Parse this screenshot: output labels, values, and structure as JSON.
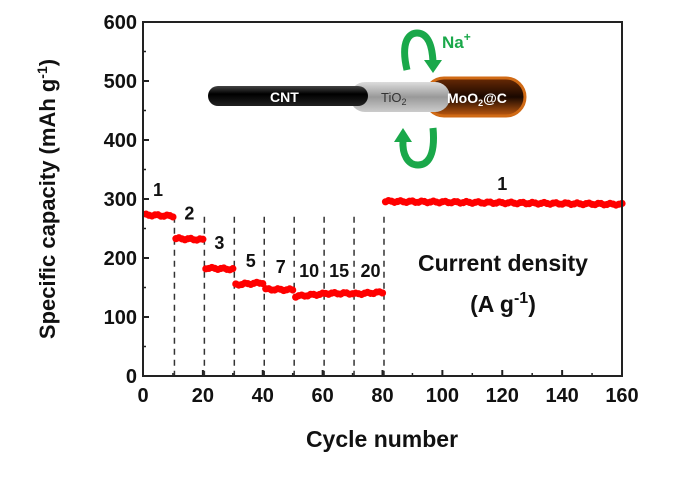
{
  "chart_data": {
    "type": "scatter",
    "title": "",
    "xlabel": "Cycle number",
    "ylabel": "Specific capacity (mAh g-1)",
    "ylabel_parts": [
      "Specific capacity (mAh g",
      "-1",
      ")"
    ],
    "xlim": [
      0,
      160
    ],
    "ylim": [
      0,
      600
    ],
    "xticks": [
      0,
      20,
      40,
      60,
      80,
      100,
      120,
      140,
      160
    ],
    "yticks": [
      0,
      100,
      200,
      300,
      400,
      500,
      600
    ],
    "grid": false,
    "series_color": "#ff0000",
    "segments": [
      {
        "rate": "1",
        "cycles": [
          1,
          10
        ],
        "capacity": [
          273,
          271
        ]
      },
      {
        "rate": "2",
        "cycles": [
          11,
          20
        ],
        "capacity": [
          233,
          231
        ]
      },
      {
        "rate": "3",
        "cycles": [
          21,
          30
        ],
        "capacity": [
          183,
          181
        ]
      },
      {
        "rate": "5",
        "cycles": [
          31,
          40
        ],
        "capacity": [
          155,
          158
        ]
      },
      {
        "rate": "7",
        "cycles": [
          41,
          50
        ],
        "capacity": [
          147,
          146
        ]
      },
      {
        "rate": "10",
        "cycles": [
          51,
          60
        ],
        "capacity": [
          135,
          139
        ]
      },
      {
        "rate": "15",
        "cycles": [
          61,
          70
        ],
        "capacity": [
          140,
          140
        ]
      },
      {
        "rate": "20",
        "cycles": [
          71,
          80
        ],
        "capacity": [
          139,
          142
        ]
      },
      {
        "rate": "1",
        "cycles": [
          81,
          160
        ],
        "capacity": [
          296,
          291
        ]
      }
    ],
    "dividers": [
      10.5,
      20.5,
      30.5,
      40.5,
      50.5,
      60.5,
      70.5,
      80.5
    ],
    "rate_labels": [
      {
        "text": "1",
        "x": 5,
        "y": 305
      },
      {
        "text": "2",
        "x": 15.5,
        "y": 265
      },
      {
        "text": "3",
        "x": 25.5,
        "y": 215
      },
      {
        "text": "5",
        "x": 36,
        "y": 185
      },
      {
        "text": "7",
        "x": 46,
        "y": 175
      },
      {
        "text": "10",
        "x": 55.5,
        "y": 168
      },
      {
        "text": "15",
        "x": 65.5,
        "y": 168
      },
      {
        "text": "20",
        "x": 76,
        "y": 168
      },
      {
        "text": "1",
        "x": 120,
        "y": 315
      }
    ],
    "annotation": {
      "line1": "Current density",
      "line2_a": "(A g",
      "line2_sup": "-1",
      "line2_b": ")"
    },
    "inset": {
      "cnt": "CNT",
      "tio2": "TiO",
      "tio2_sub": "2",
      "moo2_a": "MoO",
      "moo2_sub": "2",
      "moo2_b": "@C",
      "ion": "Na",
      "ion_sup": "+"
    }
  }
}
